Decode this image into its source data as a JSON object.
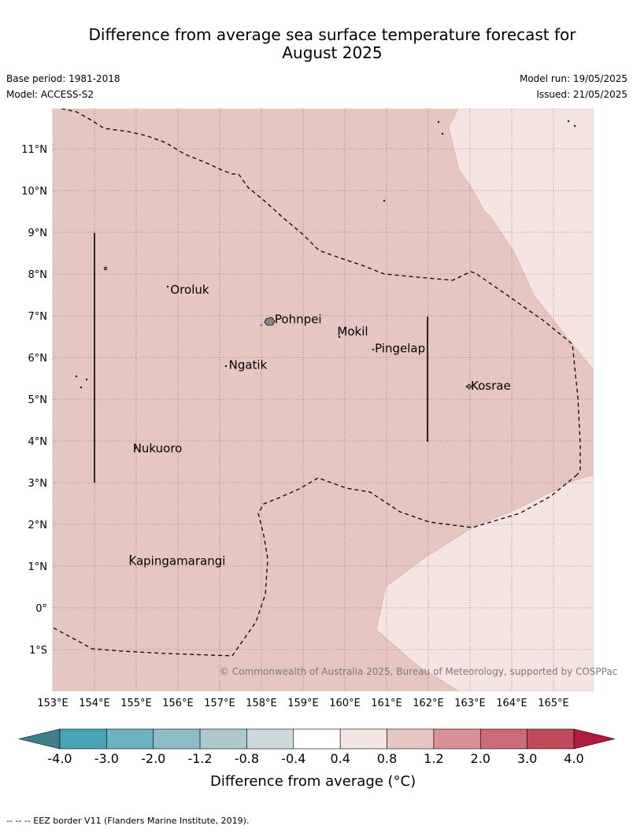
{
  "title_line1": "Difference from average sea surface temperature forecast for",
  "title_line2": "August 2025",
  "base_period": "Base period: 1981-2018",
  "model": "Model: ACCESS-S2",
  "model_run": "Model run: 19/05/2025",
  "issued": "Issued: 21/05/2025",
  "copyright": "© Commonwealth of Australia 2025, Bureau of Meteorology, supported by COSPPac",
  "lat_labels": [
    "11°N",
    "10°N",
    "9°N",
    "8°N",
    "7°N",
    "6°N",
    "5°N",
    "4°N",
    "3°N",
    "2°N",
    "1°N",
    "0°",
    "1°S"
  ],
  "lon_labels": [
    "153°E",
    "154°E",
    "155°E",
    "156°E",
    "157°E",
    "158°E",
    "159°E",
    "160°E",
    "161°E",
    "162°E",
    "163°E",
    "164°E",
    "165°E"
  ],
  "places": [
    {
      "name": "Oroluk",
      "lon": 155.8,
      "lat": 7.6
    },
    {
      "name": "Pohnpei",
      "lon": 158.3,
      "lat": 6.9
    },
    {
      "name": "Mokil",
      "lon": 159.8,
      "lat": 6.6
    },
    {
      "name": "Pingelap",
      "lon": 160.7,
      "lat": 6.2
    },
    {
      "name": "Ngatik",
      "lon": 157.2,
      "lat": 5.8
    },
    {
      "name": "Kosrae",
      "lon": 163.0,
      "lat": 5.3
    },
    {
      "name": "Nukuoro",
      "lon": 154.9,
      "lat": 3.8
    },
    {
      "name": "Kapingamarangi",
      "lon": 154.8,
      "lat": 1.1
    }
  ],
  "colorbar": {
    "labels": [
      "-4.0",
      "-3.0",
      "-2.0",
      "-1.2",
      "-0.8",
      "-0.4",
      "0.4",
      "0.8",
      "1.2",
      "2.0",
      "3.0",
      "4.0"
    ],
    "colors": [
      "#3f7f8c",
      "#48a3b4",
      "#6cb2c0",
      "#8dbbc6",
      "#aec9ce",
      "#cdd9dd",
      "#ffffff",
      "#f4e4e2",
      "#e6c6c1",
      "#d99097",
      "#cc6b78",
      "#bf4a5a",
      "#b11a3b"
    ],
    "title": "Difference from average (°C)"
  },
  "map_colors": {
    "band_0_4_to_0_8": "#f4e4e2",
    "band_0_8_to_1_2": "#e6c6c1"
  },
  "legend_text": "--  --  -- EEZ border V11 (Flanders Marine Institute, 2019)."
}
